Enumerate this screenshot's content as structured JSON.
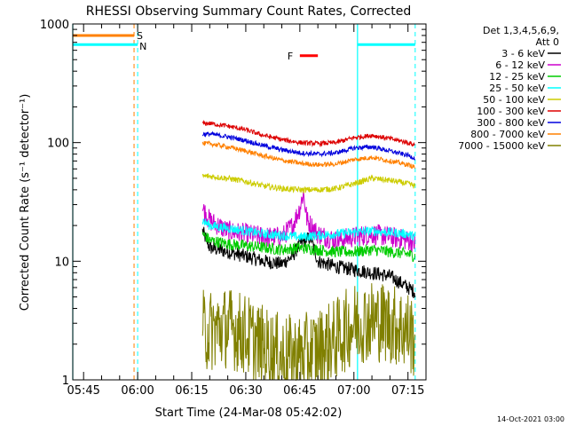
{
  "chart_data": {
    "type": "line",
    "title": "RHESSI Observing Summary Count Rates, Corrected",
    "xlabel": "Start Time (24-Mar-08 05:42:02)",
    "ylabel": "Corrected Count Rate (s⁻¹ detector⁻¹)",
    "yscale": "log",
    "ylim": [
      1,
      1000
    ],
    "xlim_minutes": [
      342,
      440
    ],
    "x_ticks": [
      {
        "label": "05:45",
        "t": 345
      },
      {
        "label": "06:00",
        "t": 360
      },
      {
        "label": "06:15",
        "t": 375
      },
      {
        "label": "06:30",
        "t": 390
      },
      {
        "label": "06:45",
        "t": 405
      },
      {
        "label": "07:00",
        "t": 420
      },
      {
        "label": "07:15",
        "t": 435
      }
    ],
    "y_ticks": [
      {
        "label": "1",
        "v": 1
      },
      {
        "label": "10",
        "v": 10
      },
      {
        "label": "100",
        "v": 100
      },
      {
        "label": "1000",
        "v": 1000
      }
    ],
    "legend": {
      "placement": "right",
      "header": [
        "Det 1,3,4,5,6,9,",
        "Att 0"
      ]
    },
    "series": [
      {
        "name": "3 - 6 keV",
        "color": "#000000",
        "points": [
          [
            378,
            18
          ],
          [
            380,
            13
          ],
          [
            385,
            12
          ],
          [
            390,
            11
          ],
          [
            395,
            10
          ],
          [
            400,
            9.5
          ],
          [
            403,
            11
          ],
          [
            405,
            14
          ],
          [
            408,
            16
          ],
          [
            410,
            10
          ],
          [
            415,
            9
          ],
          [
            420,
            8.5
          ],
          [
            425,
            8
          ],
          [
            430,
            7.5
          ],
          [
            435,
            6
          ],
          [
            437,
            5.5
          ]
        ]
      },
      {
        "name": "6 - 12 keV",
        "color": "#cc00cc",
        "points": [
          [
            378,
            28
          ],
          [
            380,
            22
          ],
          [
            385,
            18
          ],
          [
            390,
            17
          ],
          [
            395,
            16
          ],
          [
            400,
            16
          ],
          [
            403,
            20
          ],
          [
            405,
            28
          ],
          [
            406,
            38
          ],
          [
            407,
            22
          ],
          [
            410,
            17
          ],
          [
            415,
            15
          ],
          [
            420,
            16
          ],
          [
            425,
            17
          ],
          [
            430,
            16
          ],
          [
            435,
            15
          ],
          [
            437,
            14
          ]
        ]
      },
      {
        "name": "12 - 25 keV",
        "color": "#00cc00",
        "points": [
          [
            378,
            17
          ],
          [
            380,
            15
          ],
          [
            385,
            14
          ],
          [
            390,
            13.5
          ],
          [
            395,
            13
          ],
          [
            400,
            12.5
          ],
          [
            405,
            13
          ],
          [
            410,
            12.5
          ],
          [
            415,
            12
          ],
          [
            420,
            12
          ],
          [
            425,
            12.5
          ],
          [
            430,
            12
          ],
          [
            435,
            11.5
          ],
          [
            437,
            11
          ]
        ]
      },
      {
        "name": "25 - 50 keV",
        "color": "#00ffff",
        "points": [
          [
            378,
            22
          ],
          [
            380,
            20
          ],
          [
            385,
            19
          ],
          [
            390,
            18
          ],
          [
            395,
            17
          ],
          [
            400,
            16.5
          ],
          [
            405,
            16
          ],
          [
            410,
            16.5
          ],
          [
            415,
            17
          ],
          [
            420,
            17.5
          ],
          [
            425,
            18
          ],
          [
            430,
            17.5
          ],
          [
            435,
            17
          ],
          [
            437,
            16
          ]
        ]
      },
      {
        "name": "50 - 100 keV",
        "color": "#cccc00",
        "points": [
          [
            378,
            52
          ],
          [
            380,
            52
          ],
          [
            385,
            50
          ],
          [
            390,
            47
          ],
          [
            395,
            43
          ],
          [
            400,
            41
          ],
          [
            405,
            40
          ],
          [
            410,
            40
          ],
          [
            415,
            41
          ],
          [
            420,
            45
          ],
          [
            425,
            50
          ],
          [
            430,
            48
          ],
          [
            435,
            45
          ],
          [
            437,
            43
          ]
        ]
      },
      {
        "name": "100 - 300 keV",
        "color": "#dd0000",
        "points": [
          [
            378,
            145
          ],
          [
            380,
            145
          ],
          [
            385,
            138
          ],
          [
            390,
            128
          ],
          [
            395,
            115
          ],
          [
            400,
            106
          ],
          [
            405,
            100
          ],
          [
            410,
            98
          ],
          [
            415,
            100
          ],
          [
            420,
            110
          ],
          [
            425,
            115
          ],
          [
            430,
            108
          ],
          [
            435,
            100
          ],
          [
            437,
            95
          ]
        ]
      },
      {
        "name": "300 - 800 keV",
        "color": "#0000dd",
        "points": [
          [
            378,
            118
          ],
          [
            380,
            118
          ],
          [
            385,
            112
          ],
          [
            390,
            104
          ],
          [
            395,
            94
          ],
          [
            400,
            87
          ],
          [
            405,
            82
          ],
          [
            410,
            80
          ],
          [
            415,
            82
          ],
          [
            420,
            90
          ],
          [
            425,
            92
          ],
          [
            430,
            85
          ],
          [
            435,
            78
          ],
          [
            437,
            74
          ]
        ]
      },
      {
        "name": "800 - 7000 keV",
        "color": "#ff8000",
        "points": [
          [
            378,
            98
          ],
          [
            380,
            98
          ],
          [
            385,
            92
          ],
          [
            390,
            85
          ],
          [
            395,
            77
          ],
          [
            400,
            71
          ],
          [
            405,
            67
          ],
          [
            410,
            65
          ],
          [
            415,
            66
          ],
          [
            420,
            72
          ],
          [
            425,
            75
          ],
          [
            430,
            70
          ],
          [
            435,
            65
          ],
          [
            437,
            62
          ]
        ]
      },
      {
        "name": "7000 - 15000 keV",
        "color": "#808000",
        "points": [
          [
            378,
            2.6
          ],
          [
            380,
            2.6
          ],
          [
            385,
            2.8
          ],
          [
            390,
            2.4
          ],
          [
            395,
            1.9
          ],
          [
            400,
            1.6
          ],
          [
            405,
            1.6
          ],
          [
            410,
            1.8
          ],
          [
            415,
            2.2
          ],
          [
            420,
            3.0
          ],
          [
            425,
            3.2
          ],
          [
            430,
            3.0
          ],
          [
            435,
            2.6
          ],
          [
            437,
            2.2
          ]
        ]
      }
    ],
    "annotations": {
      "saa_label": "S",
      "night_label": "N",
      "flare_label": "F",
      "saa_bar": {
        "t0": 342,
        "t1": 359,
        "v": 800,
        "color": "#ff8000"
      },
      "night_bars": [
        {
          "t0": 342,
          "t1": 360,
          "v": 670,
          "color": "#00ffff"
        },
        {
          "t0": 421,
          "t1": 437,
          "v": 670,
          "color": "#00ffff"
        }
      ],
      "flare_bar": {
        "t0": 405,
        "t1": 410,
        "v": 540,
        "color": "#ff0000"
      },
      "vlines_solid": [
        342,
        421
      ],
      "vlines_dashed": [
        359,
        360,
        437
      ]
    },
    "timestamp": "14-Oct-2021 03:00"
  }
}
